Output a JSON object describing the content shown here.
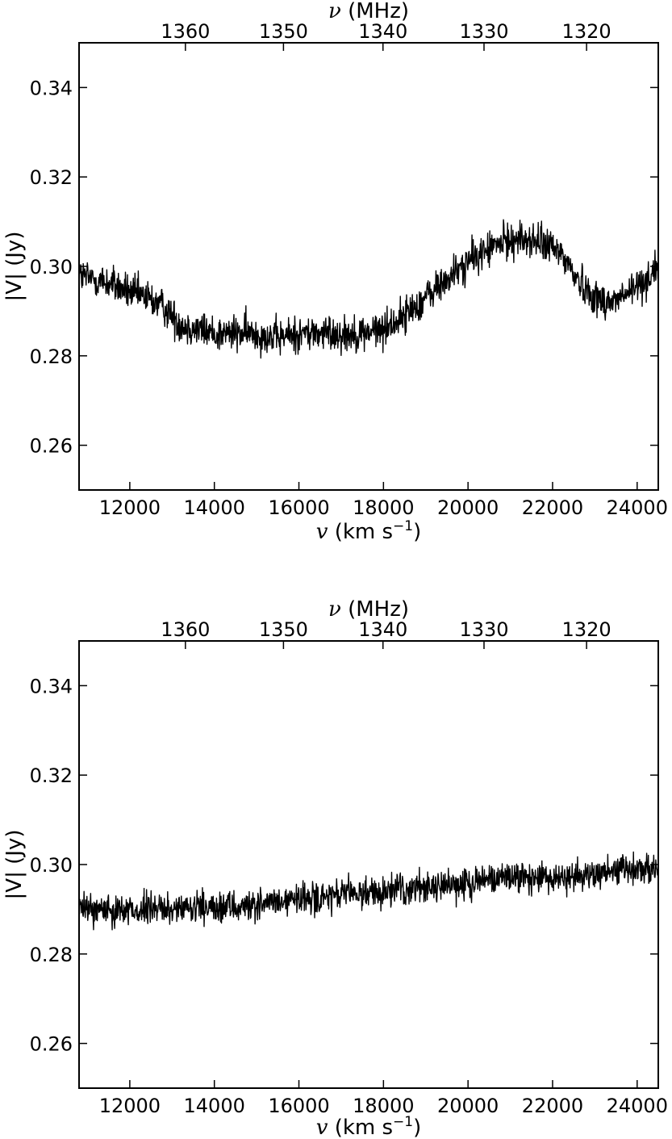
{
  "chart_data": [
    {
      "type": "line",
      "panel": "top",
      "xlabel": {
        "symbol": "v",
        "text": " (km s",
        "sup": "−1",
        "close": ")"
      },
      "ylabel": "|V| (Jy)",
      "top_axis_label": {
        "symbol": "ν",
        "text": " (MHz)"
      },
      "xlim": [
        10800,
        24500
      ],
      "ylim": [
        0.25,
        0.35
      ],
      "x_ticks": [
        12000,
        14000,
        16000,
        18000,
        20000,
        22000,
        24000
      ],
      "x_tick_labels": [
        "12000",
        "14000",
        "16000",
        "18000",
        "20000",
        "22000",
        "24000"
      ],
      "y_ticks": [
        0.26,
        0.28,
        0.3,
        0.32,
        0.34
      ],
      "y_tick_labels": [
        "0.26",
        "0.28",
        "0.30",
        "0.32",
        "0.34"
      ],
      "top_ticks": [
        1360,
        1350,
        1340,
        1330,
        1320
      ],
      "top_tick_labels": [
        "1360",
        "1350",
        "1340",
        "1330",
        "1320"
      ],
      "series_color": "#000000",
      "series": [
        {
          "x": [
            10800,
            11200,
            11600,
            12000,
            12400,
            12800,
            13200,
            13600,
            14000,
            14500,
            15000,
            15500,
            16000,
            16500,
            17000,
            17500,
            18000,
            18500,
            19000,
            19500,
            20000,
            20500,
            21000,
            21400,
            21800,
            22200,
            22600,
            23000,
            23400,
            23800,
            24200,
            24500
          ],
          "values": [
            0.298,
            0.297,
            0.296,
            0.294,
            0.293,
            0.291,
            0.287,
            0.286,
            0.285,
            0.285,
            0.285,
            0.284,
            0.285,
            0.285,
            0.285,
            0.285,
            0.286,
            0.289,
            0.293,
            0.297,
            0.301,
            0.304,
            0.306,
            0.306,
            0.305,
            0.303,
            0.297,
            0.293,
            0.292,
            0.294,
            0.297,
            0.3
          ],
          "noise_amplitude": 0.004,
          "sample_count": 1400
        }
      ]
    },
    {
      "type": "line",
      "panel": "bottom",
      "xlabel": {
        "symbol": "v",
        "text": " (km s",
        "sup": "−1",
        "close": ")"
      },
      "ylabel": "|V| (Jy)",
      "top_axis_label": {
        "symbol": "ν",
        "text": " (MHz)"
      },
      "xlim": [
        10800,
        24500
      ],
      "ylim": [
        0.25,
        0.35
      ],
      "x_ticks": [
        12000,
        14000,
        16000,
        18000,
        20000,
        22000,
        24000
      ],
      "x_tick_labels": [
        "12000",
        "14000",
        "16000",
        "18000",
        "20000",
        "22000",
        "24000"
      ],
      "y_ticks": [
        0.26,
        0.28,
        0.3,
        0.32,
        0.34
      ],
      "y_tick_labels": [
        "0.26",
        "0.28",
        "0.30",
        "0.32",
        "0.34"
      ],
      "top_ticks": [
        1360,
        1350,
        1340,
        1330,
        1320
      ],
      "top_tick_labels": [
        "1360",
        "1350",
        "1340",
        "1330",
        "1320"
      ],
      "series_color": "#000000",
      "series": [
        {
          "x": [
            10800,
            12000,
            13000,
            14000,
            15000,
            16000,
            17000,
            18000,
            19000,
            20000,
            21000,
            22000,
            23000,
            24000,
            24500
          ],
          "values": [
            0.29,
            0.29,
            0.29,
            0.29,
            0.291,
            0.292,
            0.293,
            0.294,
            0.295,
            0.296,
            0.297,
            0.297,
            0.298,
            0.299,
            0.299
          ],
          "noise_amplitude": 0.0035,
          "sample_count": 1400
        }
      ]
    }
  ]
}
